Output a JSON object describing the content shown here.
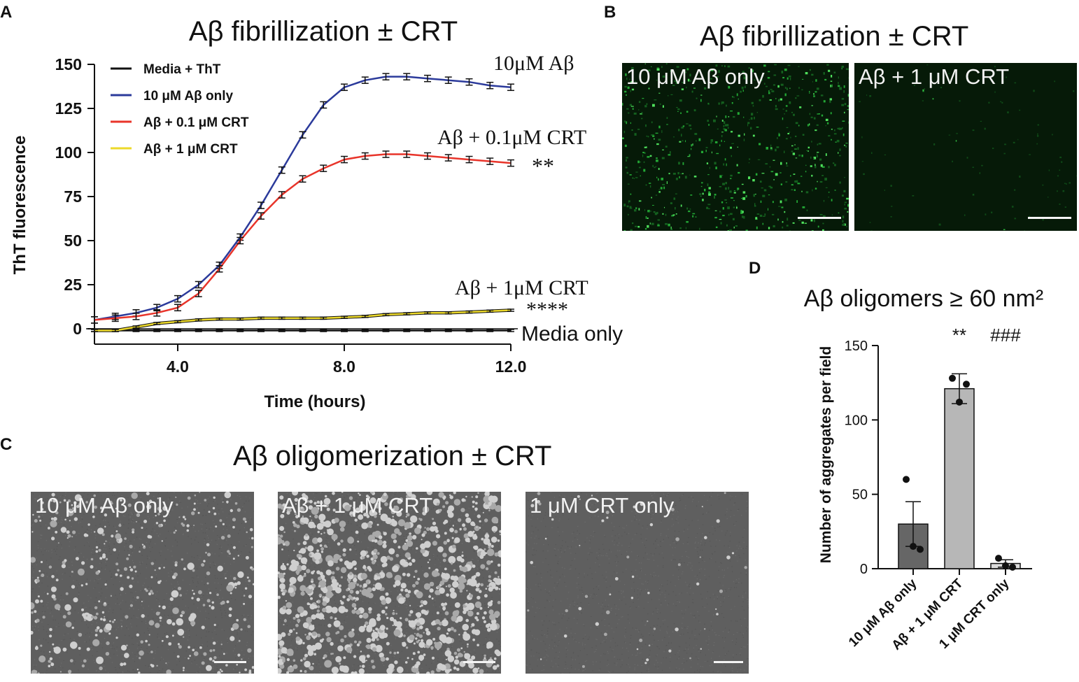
{
  "panel_letters": {
    "a": "A",
    "b": "B",
    "c": "C",
    "d": "D"
  },
  "panel_a": {
    "title": "Aβ fibrillization ± CRT",
    "annotations": {
      "blue_end": "10μM Aβ",
      "red_end": "Aβ + 0.1μM CRT",
      "red_sig": "**",
      "yellow_end": "Aβ + 1μM CRT",
      "yellow_sig": "****",
      "media_end": "Media only"
    }
  },
  "panel_b": {
    "title": "Aβ fibrillization ± CRT",
    "image_left_label": "10 μM Aβ only",
    "image_right_label": "Aβ + 1 μM CRT"
  },
  "panel_c": {
    "title": "Aβ oligomerization ± CRT",
    "image_1_label": "10 μM Aβ only",
    "image_2_label": "Aβ + 1 μM CRT",
    "image_3_label": "1 μM CRT only"
  },
  "panel_d": {
    "title": "Aβ oligomers ≥ 60 nm²"
  },
  "chart_data": [
    {
      "type": "line",
      "title": "Aβ fibrillization ± CRT",
      "xlabel": "Time (hours)",
      "ylabel": "ThT fluorescence",
      "xlim": [
        2,
        12
      ],
      "ylim": [
        0,
        150
      ],
      "xticks": [
        "4.0",
        "8.0",
        "12.0"
      ],
      "yticks": [
        "0",
        "25",
        "50",
        "75",
        "100",
        "125",
        "150"
      ],
      "legend_position": "top-left",
      "x": [
        2,
        2.5,
        3,
        3.5,
        4,
        4.5,
        5,
        5.5,
        6,
        6.5,
        7,
        7.5,
        8,
        8.5,
        9,
        9.5,
        10,
        10.5,
        11,
        11.5,
        12
      ],
      "series": [
        {
          "name": "Media + ThT",
          "color": "#111111",
          "values": [
            -1,
            -1,
            -1,
            -1,
            -1,
            -1,
            -1,
            -1,
            -1,
            -1,
            -1,
            -1,
            -1,
            -1,
            -1,
            -1,
            -1,
            -1,
            -1,
            -1,
            -1
          ]
        },
        {
          "name": "10 μM Aβ only",
          "color": "#2b3a9b",
          "values": [
            5,
            7,
            9,
            12,
            17,
            25,
            36,
            52,
            70,
            90,
            110,
            127,
            137,
            141,
            143,
            143,
            142,
            141,
            140,
            138,
            137
          ]
        },
        {
          "name": "Aβ + 0.1 μM CRT",
          "color": "#e8342a",
          "values": [
            5,
            6,
            7,
            9,
            12,
            20,
            34,
            50,
            64,
            76,
            85,
            91,
            96,
            98,
            99,
            99,
            98,
            97,
            96,
            95,
            94
          ]
        },
        {
          "name": "Aβ + 1 μM CRT",
          "color": "#ecd92a",
          "values": [
            -1,
            -1,
            1,
            3,
            4,
            5,
            5.5,
            5.5,
            6,
            6,
            6,
            6,
            6.5,
            7,
            8,
            8.5,
            9,
            9,
            9.5,
            10,
            10.5
          ]
        }
      ]
    },
    {
      "type": "bar",
      "ylabel": "Number of aggregates per field",
      "xlabel": "",
      "ylim": [
        0,
        150
      ],
      "yticks": [
        "0",
        "50",
        "100",
        "150"
      ],
      "categories": [
        "10 μM Aβ only",
        "Aβ + 1 μM CRT",
        "1 μM CRT only"
      ],
      "values": [
        30,
        121,
        3.5
      ],
      "errors": [
        15,
        10,
        2.5
      ],
      "colors": [
        "#666666",
        "#b7b7b7",
        "#dcdcdc"
      ],
      "points": [
        [
          60,
          15,
          13
        ],
        [
          128,
          112,
          124
        ],
        [
          7,
          2,
          1
        ]
      ],
      "significance": [
        "",
        "**",
        "###"
      ]
    }
  ]
}
